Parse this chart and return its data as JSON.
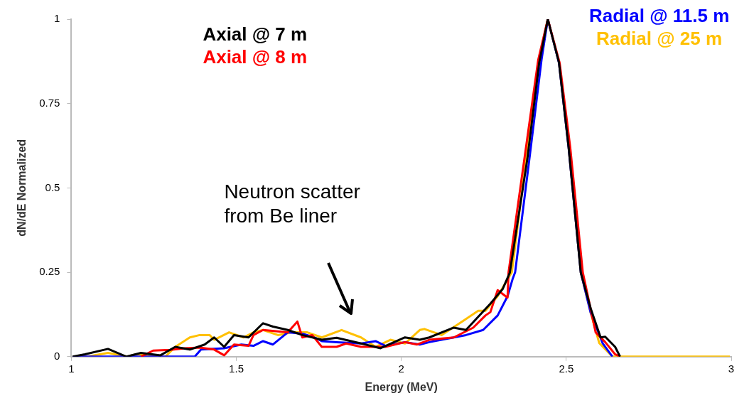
{
  "chart_data": {
    "type": "line",
    "xlabel": "Energy (MeV)",
    "ylabel": "dN/dE Normalized",
    "xlim": [
      1,
      3
    ],
    "ylim": [
      0,
      1
    ],
    "xticks": [
      1,
      1.5,
      2,
      2.5,
      3
    ],
    "yticks": [
      0,
      0.25,
      0.5,
      0.75,
      1
    ],
    "grid": false,
    "annotations": [
      "Neutron scatter\nfrom Be liner"
    ],
    "series": [
      {
        "name": "Axial @ 7 m",
        "color": "#000000",
        "x": [
          1.004,
          1.041,
          1.111,
          1.167,
          1.211,
          1.27,
          1.315,
          1.359,
          1.404,
          1.433,
          1.463,
          1.493,
          1.537,
          1.581,
          1.611,
          1.656,
          1.7,
          1.759,
          1.804,
          1.878,
          1.937,
          2.011,
          2.056,
          2.085,
          2.159,
          2.196,
          2.27,
          2.307,
          2.329,
          2.382,
          2.418,
          2.444,
          2.478,
          2.507,
          2.544,
          2.574,
          2.604,
          2.618,
          2.648,
          2.663
        ],
        "values": [
          0,
          0.007,
          0.023,
          0,
          0.011,
          0.004,
          0.029,
          0.021,
          0.036,
          0.057,
          0.029,
          0.064,
          0.057,
          0.099,
          0.089,
          0.079,
          0.064,
          0.05,
          0.056,
          0.039,
          0.025,
          0.057,
          0.05,
          0.057,
          0.086,
          0.079,
          0.157,
          0.2,
          0.249,
          0.586,
          0.871,
          1,
          0.871,
          0.622,
          0.249,
          0.143,
          0.057,
          0.059,
          0.029,
          0
        ]
      },
      {
        "name": "Axial @ 8 m",
        "color": "#ff0000",
        "x": [
          1.211,
          1.248,
          1.3,
          1.344,
          1.389,
          1.433,
          1.463,
          1.493,
          1.537,
          1.552,
          1.581,
          1.626,
          1.656,
          1.685,
          1.7,
          1.73,
          1.759,
          1.804,
          1.833,
          1.878,
          1.952,
          2.011,
          2.048,
          2.085,
          2.159,
          2.218,
          2.255,
          2.27,
          2.292,
          2.322,
          2.325,
          2.375,
          2.415,
          2.444,
          2.48,
          2.512,
          2.55,
          2.589,
          2.618,
          2.648,
          2.663
        ],
        "values": [
          0,
          0.018,
          0.02,
          0.025,
          0.027,
          0.021,
          0.004,
          0.036,
          0.032,
          0.064,
          0.079,
          0.075,
          0.072,
          0.104,
          0.057,
          0.064,
          0.029,
          0.029,
          0.039,
          0.029,
          0.029,
          0.043,
          0.036,
          0.05,
          0.057,
          0.086,
          0.122,
          0.132,
          0.197,
          0.175,
          0.25,
          0.6,
          0.88,
          1,
          0.87,
          0.62,
          0.25,
          0.072,
          0.043,
          0.007,
          0
        ]
      },
      {
        "name": "Radial @ 11.5 m",
        "color": "#0000ff",
        "x": [
          1.004,
          1.374,
          1.393,
          1.463,
          1.515,
          1.552,
          1.581,
          1.611,
          1.656,
          1.7,
          1.737,
          1.759,
          1.804,
          1.878,
          1.922,
          1.952,
          2.011,
          2.056,
          2.085,
          2.159,
          2.196,
          2.248,
          2.292,
          2.322,
          2.337,
          2.345,
          2.39,
          2.425,
          2.444,
          2.478,
          2.507,
          2.544,
          2.574,
          2.61,
          2.64
        ],
        "values": [
          0,
          0,
          0.021,
          0.025,
          0.036,
          0.032,
          0.046,
          0.036,
          0.072,
          0.068,
          0.057,
          0.046,
          0.043,
          0.039,
          0.046,
          0.032,
          0.043,
          0.036,
          0.043,
          0.057,
          0.064,
          0.079,
          0.122,
          0.179,
          0.229,
          0.25,
          0.6,
          0.88,
          1,
          0.87,
          0.62,
          0.25,
          0.13,
          0.04,
          0
        ]
      },
      {
        "name": "Radial @ 25 m",
        "color": "#ffc000",
        "x": [
          1.004,
          1.048,
          1.111,
          1.17,
          1.196,
          1.285,
          1.315,
          1.359,
          1.389,
          1.419,
          1.433,
          1.478,
          1.522,
          1.552,
          1.581,
          1.626,
          1.67,
          1.715,
          1.759,
          1.819,
          1.878,
          1.922,
          1.967,
          2.011,
          2.056,
          2.07,
          2.122,
          2.189,
          2.233,
          2.255,
          2.292,
          2.335,
          2.38,
          2.418,
          2.444,
          2.478,
          2.507,
          2.544,
          2.574,
          2.6,
          2.64,
          2.8,
          2.996
        ],
        "values": [
          0,
          0,
          0.011,
          0,
          0.007,
          0,
          0.029,
          0.057,
          0.064,
          0.064,
          0.05,
          0.072,
          0.057,
          0.072,
          0.079,
          0.064,
          0.072,
          0.072,
          0.057,
          0.079,
          0.057,
          0.029,
          0.05,
          0.039,
          0.079,
          0.082,
          0.064,
          0.107,
          0.136,
          0.136,
          0.179,
          0.25,
          0.6,
          0.88,
          1,
          0.87,
          0.62,
          0.25,
          0.13,
          0.04,
          0,
          0,
          0
        ]
      }
    ]
  }
}
